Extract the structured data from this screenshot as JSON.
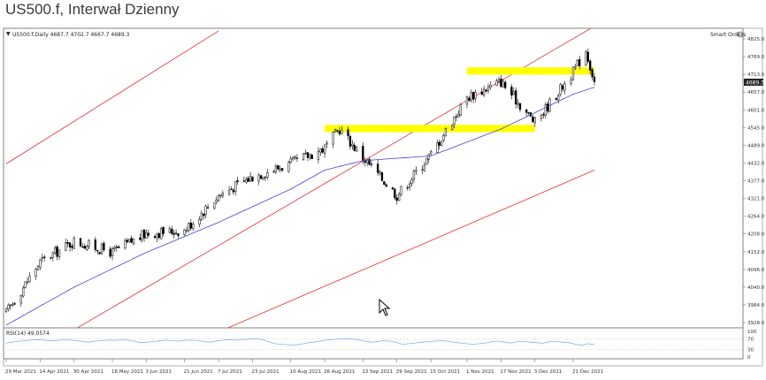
{
  "page_title": "US500.f, Interwał Dzienny",
  "header": {
    "symbol_info": "US500.f,Daily 4687.7 4702.7 4667.7 4689.3",
    "smart_orders": "Smart Orders"
  },
  "price_panel": {
    "y_ticks": [
      "4825.0",
      "4769.0",
      "4713.0",
      "4657.0",
      "4601.0",
      "4545.0",
      "4489.0",
      "4432.0",
      "4377.0",
      "4321.0",
      "4264.0",
      "4208.0",
      "4152.0",
      "4096.0",
      "4040.0",
      "3984.0",
      "3928.0"
    ],
    "current_price_label": "4689.3"
  },
  "rsi_panel": {
    "label": "RSI(14) 49.0574",
    "y_ticks": [
      "100",
      "70",
      "30",
      "0"
    ]
  },
  "x_ticks": [
    "29 Mar 2021",
    "14 Apr 2021",
    "30 Apr 2021",
    "18 May 2021",
    "3 Jun 2021",
    "21 Jun 2021",
    "7 Jul 2021",
    "23 Jul 2021",
    "10 Aug 2021",
    "26 Aug 2021",
    "13 Sep 2021",
    "29 Sep 2021",
    "15 Oct 2021",
    "1 Nov 2021",
    "17 Nov 2021",
    "3 Dec 2021",
    "21 Dec 2021"
  ],
  "colors": {
    "candle": "#000000",
    "moving_average": "#4444cc",
    "channel": "#e03030",
    "zone": "#ffff00",
    "rsi": "#7fb3e8"
  },
  "chart_data": {
    "type": "candlestick",
    "y_scale": {
      "min": 3900,
      "max": 4840
    },
    "x_range": [
      "29 Mar 2021",
      "31 Dec 2021"
    ],
    "close_anchors": [
      {
        "date": "29 Mar 2021",
        "close": 3960
      },
      {
        "date": "14 Apr 2021",
        "close": 4120
      },
      {
        "date": "30 Apr 2021",
        "close": 4185
      },
      {
        "date": "18 May 2021",
        "close": 4150
      },
      {
        "date": "3 Jun 2021",
        "close": 4210
      },
      {
        "date": "21 Jun 2021",
        "close": 4220
      },
      {
        "date": "7 Jul 2021",
        "close": 4330
      },
      {
        "date": "23 Jul 2021",
        "close": 4390
      },
      {
        "date": "10 Aug 2021",
        "close": 4430
      },
      {
        "date": "26 Aug 2021",
        "close": 4480
      },
      {
        "date": "2 Sep 2021",
        "close": 4540
      },
      {
        "date": "13 Sep 2021",
        "close": 4450
      },
      {
        "date": "29 Sep 2021",
        "close": 4330
      },
      {
        "date": "15 Oct 2021",
        "close": 4460
      },
      {
        "date": "1 Nov 2021",
        "close": 4640
      },
      {
        "date": "17 Nov 2021",
        "close": 4690
      },
      {
        "date": "3 Dec 2021",
        "close": 4560
      },
      {
        "date": "21 Dec 2021",
        "close": 4720
      },
      {
        "date": "27 Dec 2021",
        "close": 4790
      },
      {
        "date": "31 Dec 2021",
        "close": 4689.3
      }
    ],
    "moving_average_anchors": [
      {
        "date": "29 Mar 2021",
        "value": 3920
      },
      {
        "date": "30 Apr 2021",
        "value": 4040
      },
      {
        "date": "3 Jun 2021",
        "value": 4150
      },
      {
        "date": "7 Jul 2021",
        "value": 4245
      },
      {
        "date": "10 Aug 2021",
        "value": 4350
      },
      {
        "date": "26 Aug 2021",
        "value": 4410
      },
      {
        "date": "13 Sep 2021",
        "value": 4440
      },
      {
        "date": "15 Oct 2021",
        "value": 4455
      },
      {
        "date": "17 Nov 2021",
        "value": 4540
      },
      {
        "date": "21 Dec 2021",
        "value": 4650
      },
      {
        "date": "31 Dec 2021",
        "value": 4672
      }
    ],
    "resistance_zones": [
      {
        "from": "26 Aug 2021",
        "to": "3 Dec 2021",
        "low": 4530,
        "high": 4553
      },
      {
        "from": "1 Nov 2021",
        "to": "31 Dec 2021",
        "low": 4712,
        "high": 4735
      }
    ],
    "channel_lines": [
      {
        "from": {
          "date": "29 Mar 2021",
          "value": 4430
        },
        "to": {
          "date": "7 Jul 2021",
          "value": 4850
        }
      },
      {
        "from": {
          "date": "29 Mar 2021",
          "value": 3780
        },
        "to": {
          "date": "31 Dec 2021",
          "value": 4865
        }
      },
      {
        "from": {
          "date": "3 Jun 2021",
          "value": 3800
        },
        "to": {
          "date": "31 Dec 2021",
          "value": 4410
        }
      }
    ],
    "rsi": {
      "ylim": [
        0,
        100
      ],
      "levels": [
        70,
        30
      ],
      "values": [
        55,
        58,
        62,
        64,
        66,
        68,
        66,
        63,
        65,
        67,
        66,
        64,
        60,
        58,
        62,
        64,
        66,
        65,
        67,
        66,
        62,
        56,
        58,
        60,
        63,
        66,
        64,
        62,
        65,
        66,
        64,
        60,
        58,
        63,
        66,
        68,
        66,
        67,
        70,
        72,
        68,
        60,
        52,
        50,
        48,
        46,
        50,
        55,
        58,
        62,
        66,
        68,
        70,
        72,
        70,
        68,
        62,
        58,
        60,
        64,
        62,
        57,
        50,
        52,
        55,
        58,
        60,
        62,
        64,
        62,
        58,
        55,
        52,
        50,
        52,
        55,
        60,
        62,
        58,
        55,
        60,
        62,
        58,
        56,
        54,
        60,
        62,
        58,
        56,
        50,
        46,
        52,
        49
      ]
    }
  }
}
